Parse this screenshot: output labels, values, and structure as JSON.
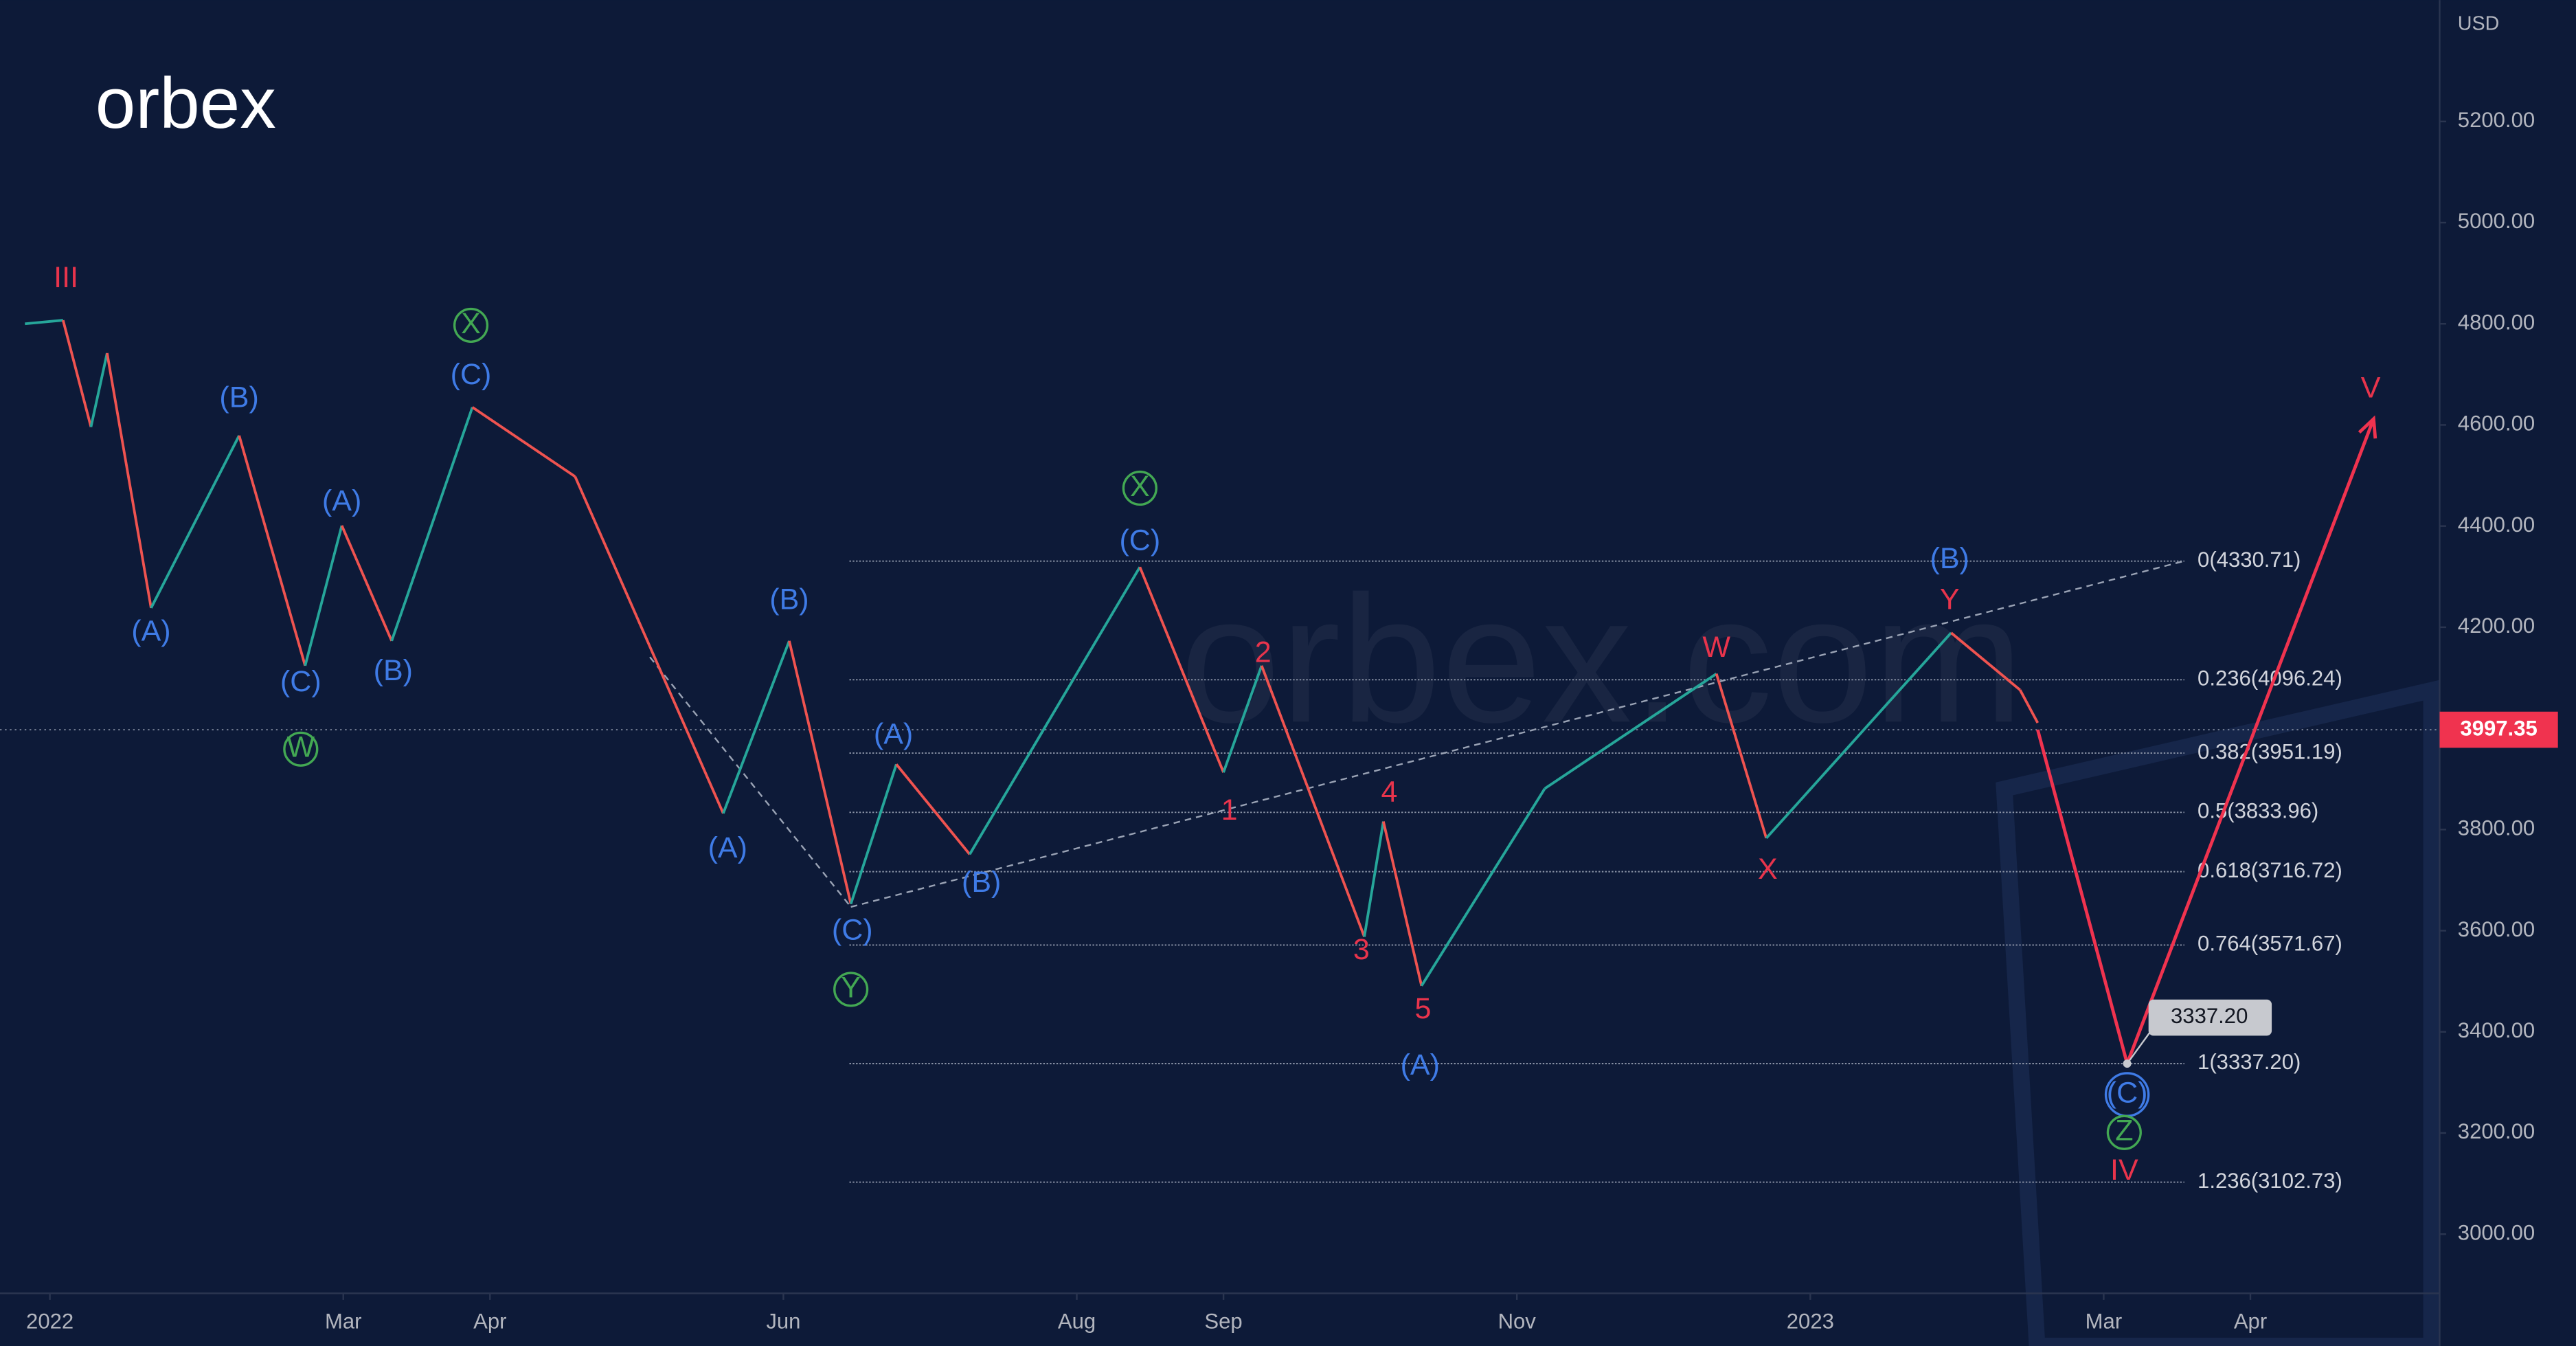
{
  "chart_data": {
    "type": "line",
    "logo": "orbex",
    "watermark": "orbex.com",
    "currency": "USD",
    "xlim": [
      -0.34,
      16.29
    ],
    "ylim": [
      2883,
      5440
    ],
    "xticks": [
      {
        "value": 0,
        "label": "2022"
      },
      {
        "value": 2,
        "label": "Mar"
      },
      {
        "value": 3,
        "label": "Apr"
      },
      {
        "value": 5,
        "label": "Jun"
      },
      {
        "value": 7,
        "label": "Aug"
      },
      {
        "value": 8,
        "label": "Sep"
      },
      {
        "value": 10,
        "label": "Nov"
      },
      {
        "value": 12,
        "label": "2023"
      },
      {
        "value": 14,
        "label": "Mar"
      },
      {
        "value": 15,
        "label": "Apr"
      }
    ],
    "yticks": [
      {
        "value": 3000,
        "label": "3000.00"
      },
      {
        "value": 3200,
        "label": "3200.00"
      },
      {
        "value": 3400,
        "label": "3400.00"
      },
      {
        "value": 3600,
        "label": "3600.00"
      },
      {
        "value": 3800,
        "label": "3800.00"
      },
      {
        "value": 4000,
        "label": "4000.00"
      },
      {
        "value": 4200,
        "label": "4200.00"
      },
      {
        "value": 4400,
        "label": "4400.00"
      },
      {
        "value": 4600,
        "label": "4600.00"
      },
      {
        "value": 4800,
        "label": "4800.00"
      },
      {
        "value": 5000,
        "label": "5000.00"
      },
      {
        "value": 5200,
        "label": "5200.00"
      }
    ],
    "series": [
      {
        "color": "#8fa3bf",
        "x": [
          -0.17,
          0.09,
          0.28,
          0.39,
          0.69,
          1.29,
          1.74,
          1.99,
          2.33,
          2.88,
          3.58,
          4.59,
          5.04,
          5.46,
          5.77,
          6.27,
          7.43,
          8.0,
          8.26,
          8.96,
          9.09,
          9.35,
          10.19,
          11.36,
          11.7,
          12.96,
          13.43,
          13.55
        ],
        "values": [
          4800,
          4807,
          4596,
          4742,
          4238,
          4579,
          4124,
          4401,
          4173,
          4635,
          4498,
          3832,
          4173,
          3653,
          3929,
          3751,
          4319,
          3913,
          4124,
          3588,
          3816,
          3491,
          3881,
          4108,
          3783,
          4189,
          4076,
          4011
        ]
      },
      {
        "color": "#f0334f",
        "x": [
          13.55,
          14.16,
          15.84
        ],
        "values": [
          3997.35,
          3337.2,
          4612
        ]
      }
    ],
    "last_price": {
      "value": 3997.35,
      "label": "3997.35",
      "color": "#f0334f"
    },
    "target": {
      "x": 14.16,
      "value": 3337.2,
      "label": "3337.20"
    },
    "fib_x": [
      5.45,
      14.55
    ],
    "fib_levels": [
      {
        "value": 4330.71,
        "label": "0(4330.71)"
      },
      {
        "value": 4096.24,
        "label": "0.236(4096.24)"
      },
      {
        "value": 3951.19,
        "label": "0.382(3951.19)"
      },
      {
        "value": 3833.96,
        "label": "0.5(3833.96)"
      },
      {
        "value": 3716.72,
        "label": "0.618(3716.72)"
      },
      {
        "value": 3571.67,
        "label": "0.764(3571.67)"
      },
      {
        "value": 3337.2,
        "label": "1(3337.20)"
      },
      {
        "value": 3102.73,
        "label": "1.236(3102.73)"
      }
    ],
    "trendlines": [
      {
        "x": [
          5.46,
          14.55
        ],
        "values": [
          3647,
          4331
        ]
      },
      {
        "x": [
          4.09,
          5.46
        ],
        "values": [
          4141,
          3647
        ]
      }
    ],
    "annotations": [
      {
        "text": "III",
        "x": 0.11,
        "y": 4888,
        "color": "#e8344c"
      },
      {
        "text": "(A)",
        "x": 0.69,
        "y": 4189,
        "color": "#3f7be6"
      },
      {
        "text": "(B)",
        "x": 1.29,
        "y": 4651,
        "color": "#3f7be6"
      },
      {
        "text": "(C)",
        "x": 1.71,
        "y": 4089,
        "color": "#3f7be6"
      },
      {
        "text": "W",
        "x": 1.71,
        "y": 3959,
        "color": "#43a853",
        "circled": true
      },
      {
        "text": "(A)",
        "x": 1.99,
        "y": 4446,
        "color": "#3f7be6"
      },
      {
        "text": "(B)",
        "x": 2.34,
        "y": 4111,
        "color": "#3f7be6"
      },
      {
        "text": "X",
        "x": 2.87,
        "y": 4797,
        "color": "#43a853",
        "circled": true
      },
      {
        "text": "(C)",
        "x": 2.87,
        "y": 4696,
        "color": "#3f7be6"
      },
      {
        "text": "(B)",
        "x": 5.04,
        "y": 4251,
        "color": "#3f7be6"
      },
      {
        "text": "(A)",
        "x": 4.62,
        "y": 3760,
        "color": "#3f7be6"
      },
      {
        "text": "(C)",
        "x": 5.47,
        "y": 3598,
        "color": "#3f7be6"
      },
      {
        "text": "Y",
        "x": 5.46,
        "y": 3484,
        "color": "#43a853",
        "circled": true
      },
      {
        "text": "(B)",
        "x": 6.35,
        "y": 3692,
        "color": "#3f7be6"
      },
      {
        "text": "(A)",
        "x": 5.75,
        "y": 3985,
        "color": "#3f7be6"
      },
      {
        "text": "X",
        "x": 7.43,
        "y": 4475,
        "color": "#43a853",
        "circled": true
      },
      {
        "text": "(C)",
        "x": 7.43,
        "y": 4368,
        "color": "#3f7be6"
      },
      {
        "text": "2",
        "x": 8.27,
        "y": 4147,
        "color": "#e8344c"
      },
      {
        "text": "1",
        "x": 8.04,
        "y": 3835,
        "color": "#e8344c"
      },
      {
        "text": "4",
        "x": 9.13,
        "y": 3871,
        "color": "#e8344c"
      },
      {
        "text": "3",
        "x": 8.94,
        "y": 3559,
        "color": "#e8344c"
      },
      {
        "text": "5",
        "x": 9.36,
        "y": 3442,
        "color": "#e8344c"
      },
      {
        "text": "(A)",
        "x": 9.34,
        "y": 3331,
        "color": "#3f7be6"
      },
      {
        "text": "W",
        "x": 11.36,
        "y": 4157,
        "color": "#e8344c"
      },
      {
        "text": "X",
        "x": 11.71,
        "y": 3718,
        "color": "#e8344c"
      },
      {
        "text": "(B)",
        "x": 12.95,
        "y": 4332,
        "color": "#3f7be6"
      },
      {
        "text": "Y",
        "x": 12.95,
        "y": 4251,
        "color": "#e8344c"
      },
      {
        "text": "V",
        "x": 15.82,
        "y": 4670,
        "color": "#e8344c"
      },
      {
        "text": "(C)",
        "x": 14.16,
        "y": 3276,
        "color": "#3f7be6",
        "circled": true
      },
      {
        "text": "Z",
        "x": 14.14,
        "y": 3201,
        "color": "#43a853",
        "circled": true
      },
      {
        "text": "IV",
        "x": 14.14,
        "y": 3123,
        "color": "#e8344c"
      }
    ]
  }
}
